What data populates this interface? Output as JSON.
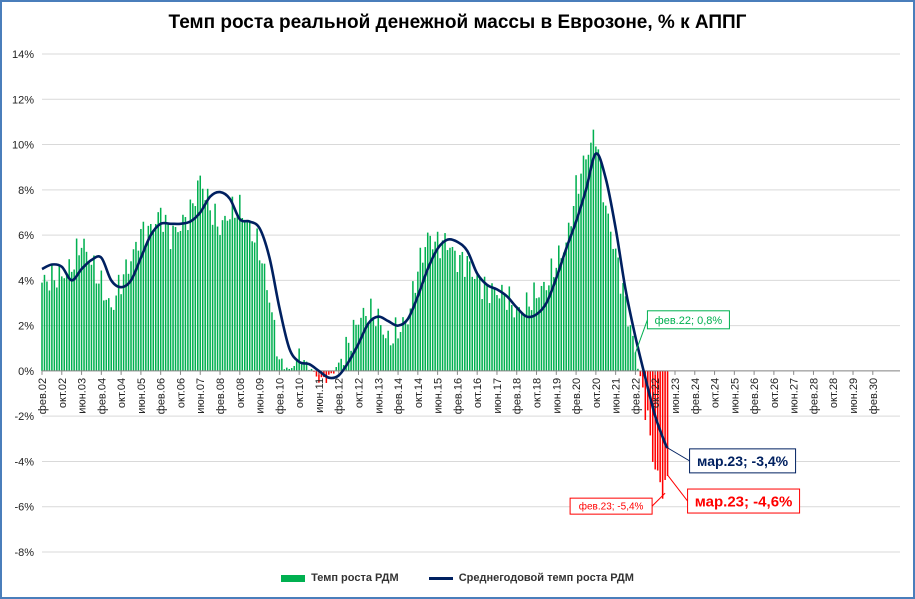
{
  "chart_data": {
    "type": "bar",
    "title": "Темп роста реальной денежной массы в Еврозоне, % к АППГ",
    "ylim": [
      -8,
      14
    ],
    "y_ticks": [
      "-8%",
      "-6%",
      "-4%",
      "-2%",
      "0%",
      "2%",
      "4%",
      "6%",
      "8%",
      "10%",
      "12%",
      "14%"
    ],
    "y_tick_values": [
      -8,
      -6,
      -4,
      -2,
      0,
      2,
      4,
      6,
      8,
      10,
      12,
      14
    ],
    "x_range": [
      "2002-02",
      "2031-01"
    ],
    "x_ticks": [
      "фев.02",
      "окт.02",
      "июн.03",
      "фев.04",
      "окт.04",
      "июн.05",
      "фев.06",
      "окт.06",
      "июн.07",
      "фев.08",
      "окт.08",
      "июн.09",
      "фев.10",
      "окт.10",
      "июн.11",
      "фев.12",
      "окт.12",
      "июн.13",
      "фев.14",
      "окт.14",
      "июн.15",
      "фев.16",
      "окт.16",
      "июн.17",
      "фев.18",
      "окт.18",
      "июн.19",
      "фев.20",
      "окт.20",
      "июн.21",
      "фев.22",
      "окт.22",
      "июн.23",
      "фев.24",
      "окт.24",
      "июн.25",
      "фев.26",
      "окт.26",
      "июн.27",
      "фев.28",
      "окт.28",
      "июн.29",
      "фев.30"
    ],
    "grid": "horizontal",
    "colors": {
      "positive_bar": "#00b050",
      "negative_bar": "#ff0000",
      "line": "#002060"
    },
    "series": [
      {
        "name": "Темп роста РДМ",
        "type": "bar",
        "keys": [
          {
            "x": "2002-02",
            "y": 3.9
          },
          {
            "x": "2002-06",
            "y": 4.1
          },
          {
            "x": "2002-10",
            "y": 4.2
          },
          {
            "x": "2003-02",
            "y": 4.6
          },
          {
            "x": "2003-06",
            "y": 5.7
          },
          {
            "x": "2003-10",
            "y": 4.8
          },
          {
            "x": "2004-02",
            "y": 3.8
          },
          {
            "x": "2004-06",
            "y": 2.7
          },
          {
            "x": "2004-10",
            "y": 4.0
          },
          {
            "x": "2005-02",
            "y": 4.9
          },
          {
            "x": "2005-06",
            "y": 6.1
          },
          {
            "x": "2005-10",
            "y": 6.2
          },
          {
            "x": "2006-02",
            "y": 7.0
          },
          {
            "x": "2006-06",
            "y": 6.0
          },
          {
            "x": "2006-10",
            "y": 6.4
          },
          {
            "x": "2007-02",
            "y": 7.0
          },
          {
            "x": "2007-06",
            "y": 8.5
          },
          {
            "x": "2007-10",
            "y": 7.2
          },
          {
            "x": "2008-02",
            "y": 6.3
          },
          {
            "x": "2008-06",
            "y": 7.0
          },
          {
            "x": "2008-10",
            "y": 7.2
          },
          {
            "x": "2009-02",
            "y": 6.3
          },
          {
            "x": "2009-06",
            "y": 5.4
          },
          {
            "x": "2009-10",
            "y": 3.2
          },
          {
            "x": "2010-02",
            "y": 0.5
          },
          {
            "x": "2010-06",
            "y": 0.0
          },
          {
            "x": "2010-10",
            "y": 0.6
          },
          {
            "x": "2011-02",
            "y": 0.2
          },
          {
            "x": "2011-06",
            "y": -0.4
          },
          {
            "x": "2011-10",
            "y": -0.3
          },
          {
            "x": "2012-02",
            "y": 0.3
          },
          {
            "x": "2012-06",
            "y": 1.2
          },
          {
            "x": "2012-10",
            "y": 2.3
          },
          {
            "x": "2013-02",
            "y": 2.6
          },
          {
            "x": "2013-06",
            "y": 2.3
          },
          {
            "x": "2013-10",
            "y": 1.3
          },
          {
            "x": "2014-02",
            "y": 1.8
          },
          {
            "x": "2014-06",
            "y": 2.3
          },
          {
            "x": "2014-10",
            "y": 4.5
          },
          {
            "x": "2015-02",
            "y": 5.9
          },
          {
            "x": "2015-06",
            "y": 5.6
          },
          {
            "x": "2015-10",
            "y": 5.7
          },
          {
            "x": "2016-02",
            "y": 4.9
          },
          {
            "x": "2016-06",
            "y": 4.8
          },
          {
            "x": "2016-10",
            "y": 4.0
          },
          {
            "x": "2017-02",
            "y": 3.6
          },
          {
            "x": "2017-06",
            "y": 3.5
          },
          {
            "x": "2017-10",
            "y": 3.3
          },
          {
            "x": "2018-02",
            "y": 2.6
          },
          {
            "x": "2018-06",
            "y": 2.9
          },
          {
            "x": "2018-10",
            "y": 3.4
          },
          {
            "x": "2019-02",
            "y": 3.8
          },
          {
            "x": "2019-06",
            "y": 4.8
          },
          {
            "x": "2019-10",
            "y": 5.6
          },
          {
            "x": "2020-02",
            "y": 8.0
          },
          {
            "x": "2020-06",
            "y": 9.5
          },
          {
            "x": "2020-10",
            "y": 10.5
          },
          {
            "x": "2021-02",
            "y": 7.2
          },
          {
            "x": "2021-06",
            "y": 5.2
          },
          {
            "x": "2021-10",
            "y": 3.0
          },
          {
            "x": "2022-02",
            "y": 0.8
          },
          {
            "x": "2022-06",
            "y": -1.5
          },
          {
            "x": "2022-10",
            "y": -4.4
          },
          {
            "x": "2023-02",
            "y": -5.4
          },
          {
            "x": "2023-03",
            "y": -4.6
          }
        ]
      },
      {
        "name": "Среднегодовой темп роста РДМ",
        "type": "line",
        "points": [
          {
            "x": "2002-02",
            "y": 4.5
          },
          {
            "x": "2002-06",
            "y": 4.7
          },
          {
            "x": "2002-10",
            "y": 4.6
          },
          {
            "x": "2003-02",
            "y": 4.0
          },
          {
            "x": "2003-06",
            "y": 4.5
          },
          {
            "x": "2003-10",
            "y": 4.9
          },
          {
            "x": "2004-02",
            "y": 5.0
          },
          {
            "x": "2004-06",
            "y": 4.0
          },
          {
            "x": "2004-10",
            "y": 3.7
          },
          {
            "x": "2005-02",
            "y": 4.0
          },
          {
            "x": "2005-06",
            "y": 5.0
          },
          {
            "x": "2005-10",
            "y": 6.0
          },
          {
            "x": "2006-02",
            "y": 6.5
          },
          {
            "x": "2006-06",
            "y": 6.5
          },
          {
            "x": "2006-10",
            "y": 6.5
          },
          {
            "x": "2007-02",
            "y": 6.6
          },
          {
            "x": "2007-06",
            "y": 7.0
          },
          {
            "x": "2007-10",
            "y": 7.7
          },
          {
            "x": "2008-02",
            "y": 7.9
          },
          {
            "x": "2008-06",
            "y": 7.6
          },
          {
            "x": "2008-10",
            "y": 6.7
          },
          {
            "x": "2009-02",
            "y": 6.6
          },
          {
            "x": "2009-06",
            "y": 6.3
          },
          {
            "x": "2009-10",
            "y": 5.0
          },
          {
            "x": "2010-02",
            "y": 2.8
          },
          {
            "x": "2010-06",
            "y": 1.0
          },
          {
            "x": "2010-10",
            "y": 0.4
          },
          {
            "x": "2011-02",
            "y": 0.3
          },
          {
            "x": "2011-06",
            "y": 0.0
          },
          {
            "x": "2011-10",
            "y": -0.3
          },
          {
            "x": "2012-02",
            "y": -0.2
          },
          {
            "x": "2012-06",
            "y": 0.4
          },
          {
            "x": "2012-10",
            "y": 1.2
          },
          {
            "x": "2013-02",
            "y": 2.1
          },
          {
            "x": "2013-06",
            "y": 2.4
          },
          {
            "x": "2013-10",
            "y": 2.2
          },
          {
            "x": "2014-02",
            "y": 2.0
          },
          {
            "x": "2014-06",
            "y": 2.3
          },
          {
            "x": "2014-10",
            "y": 3.3
          },
          {
            "x": "2015-02",
            "y": 4.5
          },
          {
            "x": "2015-06",
            "y": 5.4
          },
          {
            "x": "2015-10",
            "y": 5.8
          },
          {
            "x": "2016-02",
            "y": 5.7
          },
          {
            "x": "2016-06",
            "y": 5.3
          },
          {
            "x": "2016-10",
            "y": 4.3
          },
          {
            "x": "2017-02",
            "y": 3.8
          },
          {
            "x": "2017-06",
            "y": 3.6
          },
          {
            "x": "2017-10",
            "y": 3.3
          },
          {
            "x": "2018-02",
            "y": 2.8
          },
          {
            "x": "2018-06",
            "y": 2.4
          },
          {
            "x": "2018-10",
            "y": 2.5
          },
          {
            "x": "2019-02",
            "y": 3.0
          },
          {
            "x": "2019-06",
            "y": 4.1
          },
          {
            "x": "2019-10",
            "y": 5.4
          },
          {
            "x": "2020-02",
            "y": 6.6
          },
          {
            "x": "2020-06",
            "y": 8.0
          },
          {
            "x": "2020-10",
            "y": 9.6
          },
          {
            "x": "2021-02",
            "y": 8.5
          },
          {
            "x": "2021-06",
            "y": 6.3
          },
          {
            "x": "2021-10",
            "y": 3.6
          },
          {
            "x": "2022-02",
            "y": 1.5
          },
          {
            "x": "2022-06",
            "y": -0.3
          },
          {
            "x": "2022-10",
            "y": -2.0
          },
          {
            "x": "2023-02",
            "y": -3.2
          },
          {
            "x": "2023-03",
            "y": -3.4
          }
        ]
      }
    ],
    "annotations": [
      {
        "text": "фев.22; 0,8%",
        "x": "2022-02",
        "y": 0.8,
        "color": "#00b050"
      },
      {
        "text": "мар.23; -3,4%",
        "x": "2023-03",
        "y": -3.4,
        "color": "#002060"
      },
      {
        "text": "мар.23; -4,6%",
        "x": "2023-03",
        "y": -4.6,
        "color": "#ff0000"
      },
      {
        "text": "фев.23; -5,4%",
        "x": "2023-02",
        "y": -5.4,
        "color": "#ff0000"
      }
    ],
    "legend": {
      "position": "bottom",
      "entries": [
        "Темп роста РДМ",
        "Среднегодовой темп роста РДМ"
      ]
    }
  }
}
